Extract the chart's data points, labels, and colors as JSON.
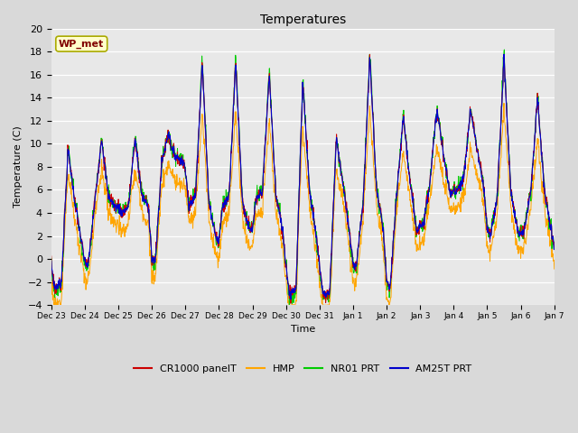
{
  "title": "Temperatures",
  "xlabel": "Time",
  "ylabel": "Temperature (C)",
  "ylim": [
    -4,
    20
  ],
  "yticks": [
    -4,
    -2,
    0,
    2,
    4,
    6,
    8,
    10,
    12,
    14,
    16,
    18,
    20
  ],
  "bg_color": "#d9d9d9",
  "plot_bg_color": "#e8e8e8",
  "legend_labels": [
    "CR1000 panelT",
    "HMP",
    "NR01 PRT",
    "AM25T PRT"
  ],
  "series_colors": [
    "#cc0000",
    "#ffa500",
    "#00cc00",
    "#0000cc"
  ],
  "annotation_text": "WP_met",
  "annotation_color": "#800000",
  "annotation_bg": "#ffffcc",
  "annotation_edge": "#aaaa00",
  "xtick_labels": [
    "Dec 23",
    "Dec 24",
    "Dec 25",
    "Dec 26",
    "Dec 27",
    "Dec 28",
    "Dec 29",
    "Dec 30",
    "Dec 31",
    "Jan 1",
    "Jan 2",
    "Jan 3",
    "Jan 4",
    "Jan 5",
    "Jan 6",
    "Jan 7"
  ],
  "num_days": 15
}
